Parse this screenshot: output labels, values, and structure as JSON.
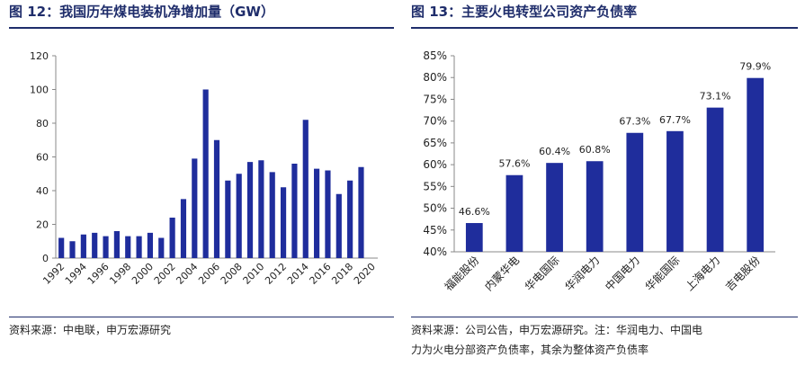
{
  "left": {
    "title": "图 12：我国历年煤电装机净增加量（GW）",
    "source": "资料来源：中电联，申万宏源研究"
  },
  "right": {
    "title": "图 13：主要火电转型公司资产负债率",
    "note_line1": "资料来源：公司公告，申万宏源研究。注：华润电力、中国电",
    "note_line2": "力为火电分部资产负债率，其余为整体资产负债率"
  },
  "colors": {
    "bar": "#1f2d9c",
    "title": "#1f2d6b",
    "axis": "#888888"
  },
  "chart_data": [
    {
      "type": "bar",
      "title": "图 12：我国历年煤电装机净增加量（GW）",
      "xlabel": "",
      "ylabel": "",
      "ylim": [
        0,
        120
      ],
      "yticks": [
        0,
        20,
        40,
        60,
        80,
        100,
        120
      ],
      "categories": [
        "1992",
        "1993",
        "1994",
        "1995",
        "1996",
        "1997",
        "1998",
        "1999",
        "2000",
        "2001",
        "2002",
        "2003",
        "2004",
        "2005",
        "2006",
        "2007",
        "2008",
        "2009",
        "2010",
        "2011",
        "2012",
        "2013",
        "2014",
        "2015",
        "2016",
        "2017",
        "2018",
        "2019",
        "2020"
      ],
      "x_tick_labels": [
        "1992",
        "1994",
        "1996",
        "1998",
        "2000",
        "2002",
        "2004",
        "2006",
        "2008",
        "2010",
        "2012",
        "2014",
        "2016",
        "2018",
        "2020"
      ],
      "values": [
        12,
        10,
        14,
        15,
        13,
        16,
        13,
        13,
        15,
        12,
        24,
        35,
        59,
        100,
        70,
        46,
        50,
        57,
        58,
        51,
        42,
        56,
        82,
        53,
        52,
        38,
        46,
        54,
        0
      ],
      "grid": false,
      "legend": "none"
    },
    {
      "type": "bar",
      "title": "图 13：主要火电转型公司资产负债率",
      "xlabel": "",
      "ylabel": "",
      "ylim": [
        40,
        85
      ],
      "yticks": [
        "40%",
        "45%",
        "50%",
        "55%",
        "60%",
        "65%",
        "70%",
        "75%",
        "80%",
        "85%"
      ],
      "categories": [
        "福能股份",
        "内蒙华电",
        "华电国际",
        "华润电力",
        "中国电力",
        "华能国际",
        "上海电力",
        "吉电股份"
      ],
      "values": [
        46.6,
        57.6,
        60.4,
        60.8,
        67.3,
        67.7,
        73.1,
        79.9
      ],
      "data_labels": [
        "46.6%",
        "57.6%",
        "60.4%",
        "60.8%",
        "67.3%",
        "67.7%",
        "73.1%",
        "79.9%"
      ],
      "grid": false,
      "legend": "none"
    }
  ]
}
